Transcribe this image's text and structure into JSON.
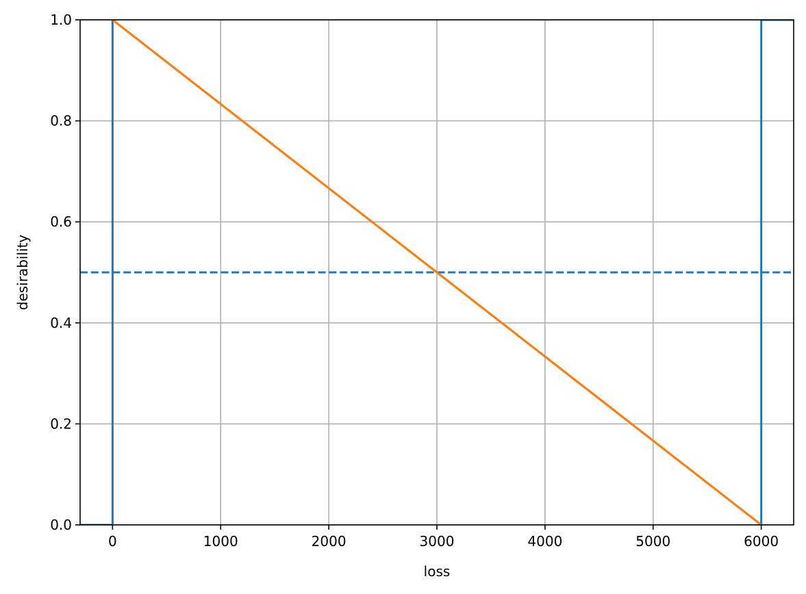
{
  "chart_data": {
    "type": "line",
    "xlabel": "loss",
    "ylabel": "desirability",
    "xlim": [
      -300,
      6300
    ],
    "ylim": [
      0.0,
      1.0
    ],
    "grid": true,
    "x_ticks": [
      0,
      1000,
      2000,
      3000,
      4000,
      5000,
      6000
    ],
    "x_tick_labels": [
      "0",
      "1000",
      "2000",
      "3000",
      "4000",
      "5000",
      "6000"
    ],
    "y_ticks": [
      0.0,
      0.2,
      0.4,
      0.6,
      0.8,
      1.0
    ],
    "y_tick_labels": [
      "0.0",
      "0.2",
      "0.4",
      "0.6",
      "0.8",
      "1.0"
    ],
    "series": [
      {
        "style": "solid",
        "color": "#1f77b4",
        "x": [
          -300,
          0,
          0,
          6000,
          6000,
          6300
        ],
        "y": [
          0.0,
          0.0,
          1.0,
          0.0,
          1.0,
          1.0
        ]
      },
      {
        "style": "dashed",
        "color": "#1f77b4",
        "x": [
          -300,
          6300
        ],
        "y": [
          0.5,
          0.5
        ]
      },
      {
        "style": "solid",
        "color": "#ff7f0e",
        "x": [
          0,
          6000
        ],
        "y": [
          1.0,
          0.0
        ]
      }
    ]
  },
  "colors": {
    "grid": "#b0b0b0",
    "axes": "#000000"
  }
}
